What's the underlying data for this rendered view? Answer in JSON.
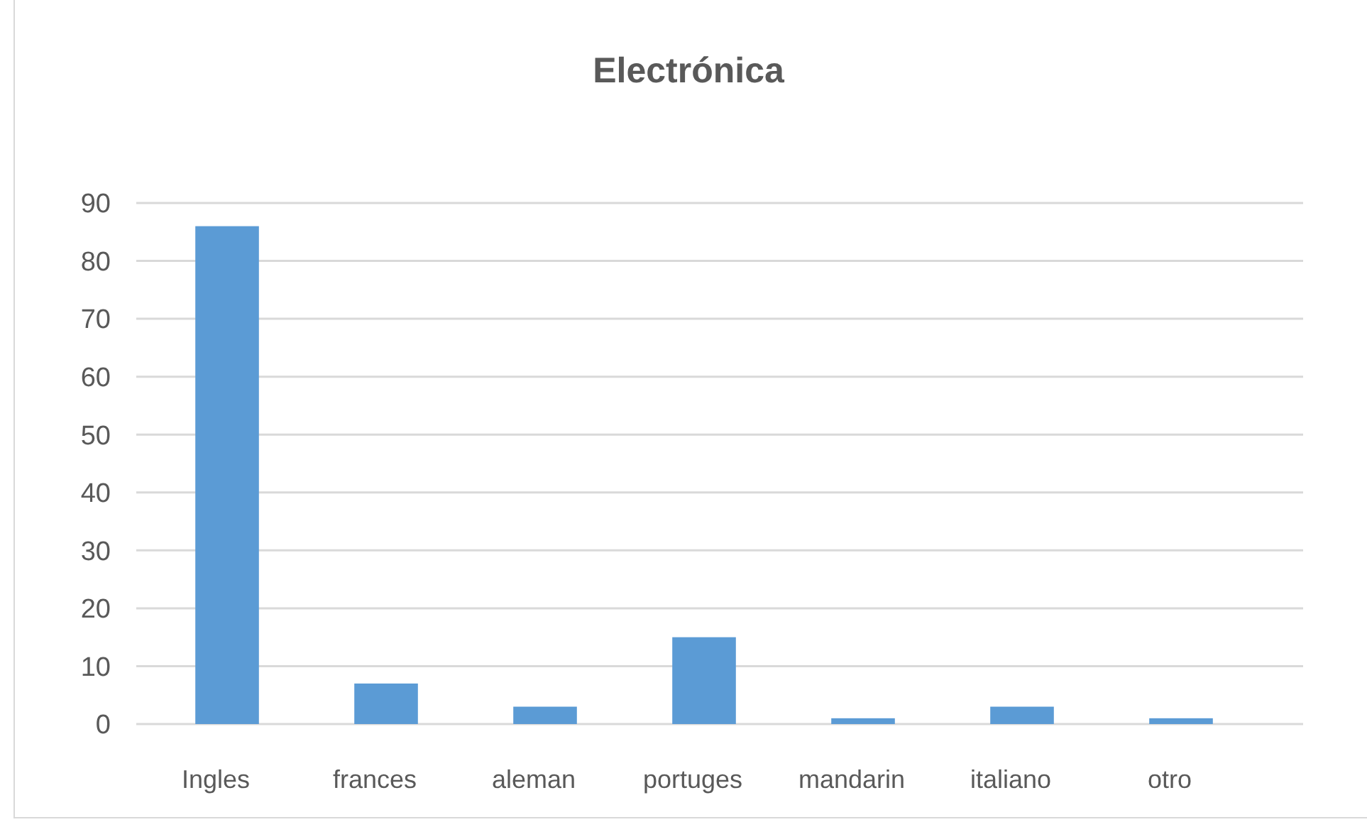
{
  "chart_data": {
    "type": "bar",
    "title": "Electrónica",
    "categories": [
      "Ingles",
      "frances",
      "aleman",
      "portuges",
      "mandarin",
      "italiano",
      "otro"
    ],
    "values": [
      86,
      7,
      3,
      15,
      1,
      3,
      1
    ],
    "color": "#5b9bd5",
    "ylim": [
      0,
      90
    ],
    "yticks": [
      0,
      10,
      20,
      30,
      40,
      50,
      60,
      70,
      80,
      90
    ],
    "grid": true
  }
}
